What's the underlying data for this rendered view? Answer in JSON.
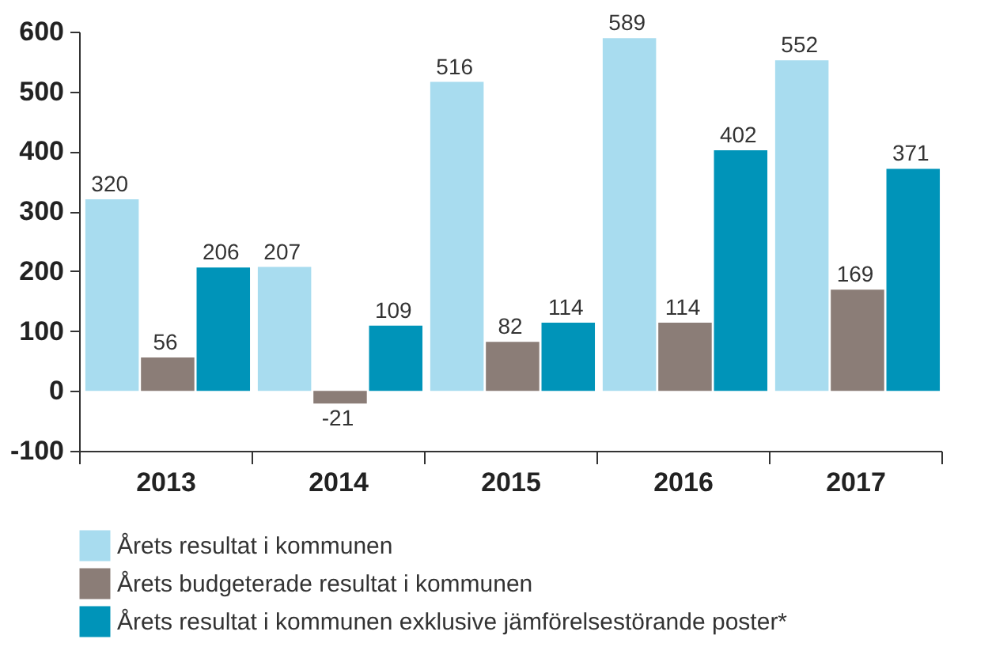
{
  "chart_data": {
    "type": "bar",
    "categories": [
      "2013",
      "2014",
      "2015",
      "2016",
      "2017"
    ],
    "series": [
      {
        "name": "Årets resultat i kommunen",
        "color": "#a8dcef",
        "values": [
          320,
          207,
          516,
          589,
          552
        ]
      },
      {
        "name": "Årets budgeterade resultat i kommunen",
        "color": "#8b7d77",
        "values": [
          56,
          -21,
          82,
          114,
          169
        ]
      },
      {
        "name": "Årets resultat i kommunen exklusive jämförelsestörande poster*",
        "color": "#0094b9",
        "values": [
          206,
          109,
          114,
          402,
          371
        ]
      }
    ],
    "ylim": [
      -100,
      600
    ],
    "yticks": [
      -100,
      0,
      100,
      200,
      300,
      400,
      500,
      600
    ],
    "grid": false,
    "legend": "bottom",
    "data_labels": true
  }
}
